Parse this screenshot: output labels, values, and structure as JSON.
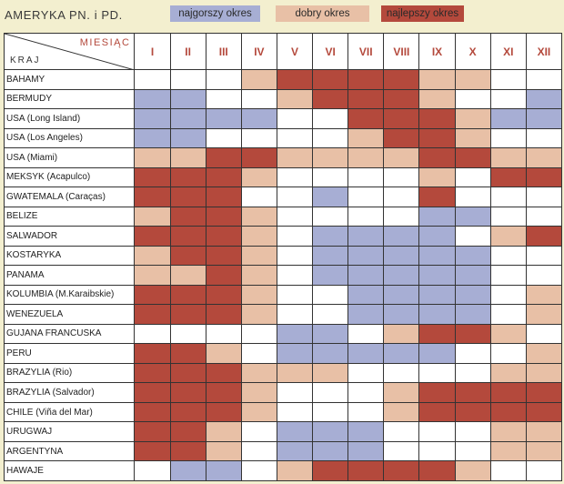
{
  "title": "AMERYKA PN. i PD.",
  "legend": {
    "worst": "najgorszy okres",
    "good": "dobry okres",
    "best": "najlepszy okres"
  },
  "colors": {
    "worst": "#a7aed4",
    "good": "#e8c0a6",
    "best": "#b4493c",
    "none": "#ffffff"
  },
  "header": {
    "month_label": "MIESIĄC",
    "country_label": "KRAJ",
    "months": [
      "I",
      "II",
      "III",
      "IV",
      "V",
      "VI",
      "VII",
      "VIII",
      "IX",
      "X",
      "XI",
      "XII"
    ]
  },
  "rows": [
    {
      "country": "BAHAMY",
      "cells": "---gbbbbgg--"
    },
    {
      "country": "BERMUDY",
      "cells": "ww--gbbbg--w"
    },
    {
      "country": "USA (Long Island)",
      "cells": "wwww--bbbgww"
    },
    {
      "country": "USA (Los Angeles)",
      "cells": "ww----gbbg--"
    },
    {
      "country": "USA (Miami)",
      "cells": "ggbbggggbbgg"
    },
    {
      "country": "MEKSYK (Acapulco)",
      "cells": "bbbg----g-bb"
    },
    {
      "country": "GWATEMALA (Caraças)",
      "cells": "bbb--w--b---"
    },
    {
      "country": "BELIZE",
      "cells": "gbbg----ww--"
    },
    {
      "country": "SALWADOR",
      "cells": "bbbg-wwww-gb"
    },
    {
      "country": "KOSTARYKA",
      "cells": "gbbg-wwwww--"
    },
    {
      "country": "PANAMA",
      "cells": "ggbg-wwwww--"
    },
    {
      "country": "KOLUMBIA (M.Karaibskie)",
      "cells": "bbbg--wwww-g"
    },
    {
      "country": "WENEZUELA",
      "cells": "bbbg--wwww-g"
    },
    {
      "country": "GUJANA FRANCUSKA",
      "cells": "----ww-gbbg-"
    },
    {
      "country": "PERU",
      "cells": "bbg-wwwww--g"
    },
    {
      "country": "BRAZYLIA (Rio)",
      "cells": "bbbggg----gg"
    },
    {
      "country": "BRAZYLIA (Salvador)",
      "cells": "bbbg---gbbbb"
    },
    {
      "country": "CHILE (Viña del Mar)",
      "cells": "bbbg---gbbbb"
    },
    {
      "country": "URUGWAJ",
      "cells": "bbg-www---gg"
    },
    {
      "country": "ARGENTYNA",
      "cells": "bbg-www---gg"
    },
    {
      "country": "HAWAJE",
      "cells": "-ww-gbbbbg--"
    }
  ]
}
